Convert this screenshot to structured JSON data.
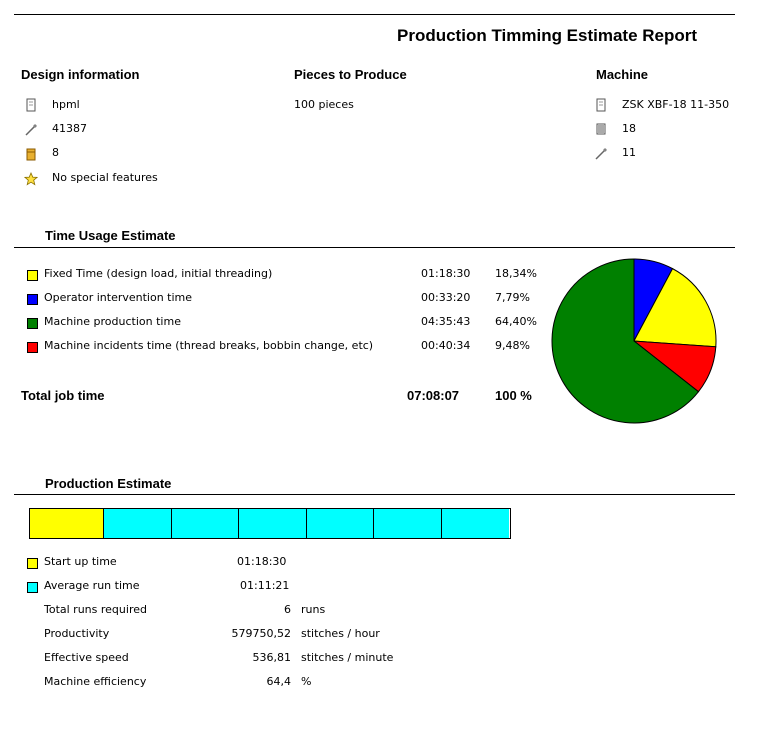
{
  "report_title": "Production Timming Estimate Report",
  "design_info": {
    "heading": "Design information",
    "items": [
      {
        "icon": "document-icon",
        "value": "hpml"
      },
      {
        "icon": "needle-icon",
        "value": "41387"
      },
      {
        "icon": "thread-spool-icon",
        "value": "8"
      },
      {
        "icon": "star-icon",
        "value": "No special features"
      }
    ]
  },
  "pieces": {
    "heading": "Pieces to Produce",
    "value": "100 pieces"
  },
  "machine": {
    "heading": "Machine",
    "items": [
      {
        "icon": "document-icon",
        "value": "ZSK XBF-18 11-350"
      },
      {
        "icon": "heads-icon",
        "value": "18"
      },
      {
        "icon": "needle-icon",
        "value": "11"
      }
    ]
  },
  "time_usage": {
    "heading": "Time Usage Estimate",
    "rows": [
      {
        "label": "Fixed Time (design load, initial threading)",
        "time": "01:18:30",
        "percent": "18,34%",
        "color": "#FFFF00"
      },
      {
        "label": "Operator intervention time",
        "time": "00:33:20",
        "percent": "7,79%",
        "color": "#0000FF"
      },
      {
        "label": "Machine production time",
        "time": "04:35:43",
        "percent": "64,40%",
        "color": "#008000"
      },
      {
        "label": "Machine incidents time (thread breaks, bobbin change, etc)",
        "time": "00:40:34",
        "percent": "9,48%",
        "color": "#FF0000"
      }
    ],
    "total_label": "Total job time",
    "total_time": "07:08:07",
    "total_percent": "100 %"
  },
  "chart_data": {
    "type": "pie",
    "categories": [
      "Fixed Time (design load, initial threading)",
      "Operator intervention time",
      "Machine production time",
      "Machine incidents time (thread breaks, bobbin change, etc)"
    ],
    "values": [
      18.34,
      7.79,
      64.4,
      9.48
    ],
    "colors": [
      "#FFFF00",
      "#0000FF",
      "#008000",
      "#FF0000"
    ],
    "title": "",
    "legend": "left"
  },
  "production": {
    "heading": "Production Estimate",
    "runs_bar": {
      "startup_color": "#FFFF00",
      "run_color": "#00FFFF",
      "total_runs": 6,
      "startup_seconds": 4710,
      "run_seconds": 4281
    },
    "startup_label": "Start up time",
    "startup_value": "01:18:30",
    "avg_label": "Average run time",
    "avg_value": "01:11:21",
    "stats": [
      {
        "label": "Total runs required",
        "value": "6",
        "unit": "runs"
      },
      {
        "label": "Productivity",
        "value": "579750,52",
        "unit": "stitches / hour"
      },
      {
        "label": "Effective speed",
        "value": "536,81",
        "unit": "stitches / minute"
      },
      {
        "label": "Machine efficiency",
        "value": "64,4",
        "unit": "%"
      }
    ]
  }
}
